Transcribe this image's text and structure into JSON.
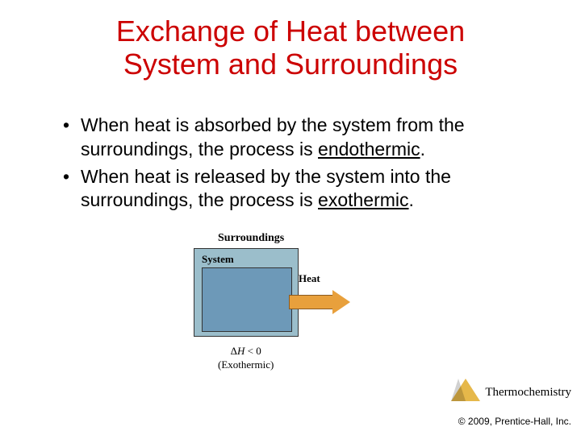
{
  "title_line1": "Exchange of Heat between",
  "title_line2": "System and Surroundings",
  "bullets": [
    {
      "pre": "When heat is absorbed by the system from the surroundings, the process is ",
      "term": "endothermic",
      "post": "."
    },
    {
      "pre": "When heat is released by the system into the surroundings, the process is ",
      "term": "exothermic",
      "post": "."
    }
  ],
  "diagram": {
    "surroundings": "Surroundings",
    "system": "System",
    "heat": "Heat",
    "delta_line1": "ΔH < 0",
    "delta_line2": "(Exothermic)",
    "outer_color": "#9bbecb",
    "inner_color": "#6d99b8",
    "arrow_color": "#e8a03c"
  },
  "footer": {
    "topic": "Thermochemistry",
    "copyright": "© 2009, Prentice-Hall, Inc."
  }
}
